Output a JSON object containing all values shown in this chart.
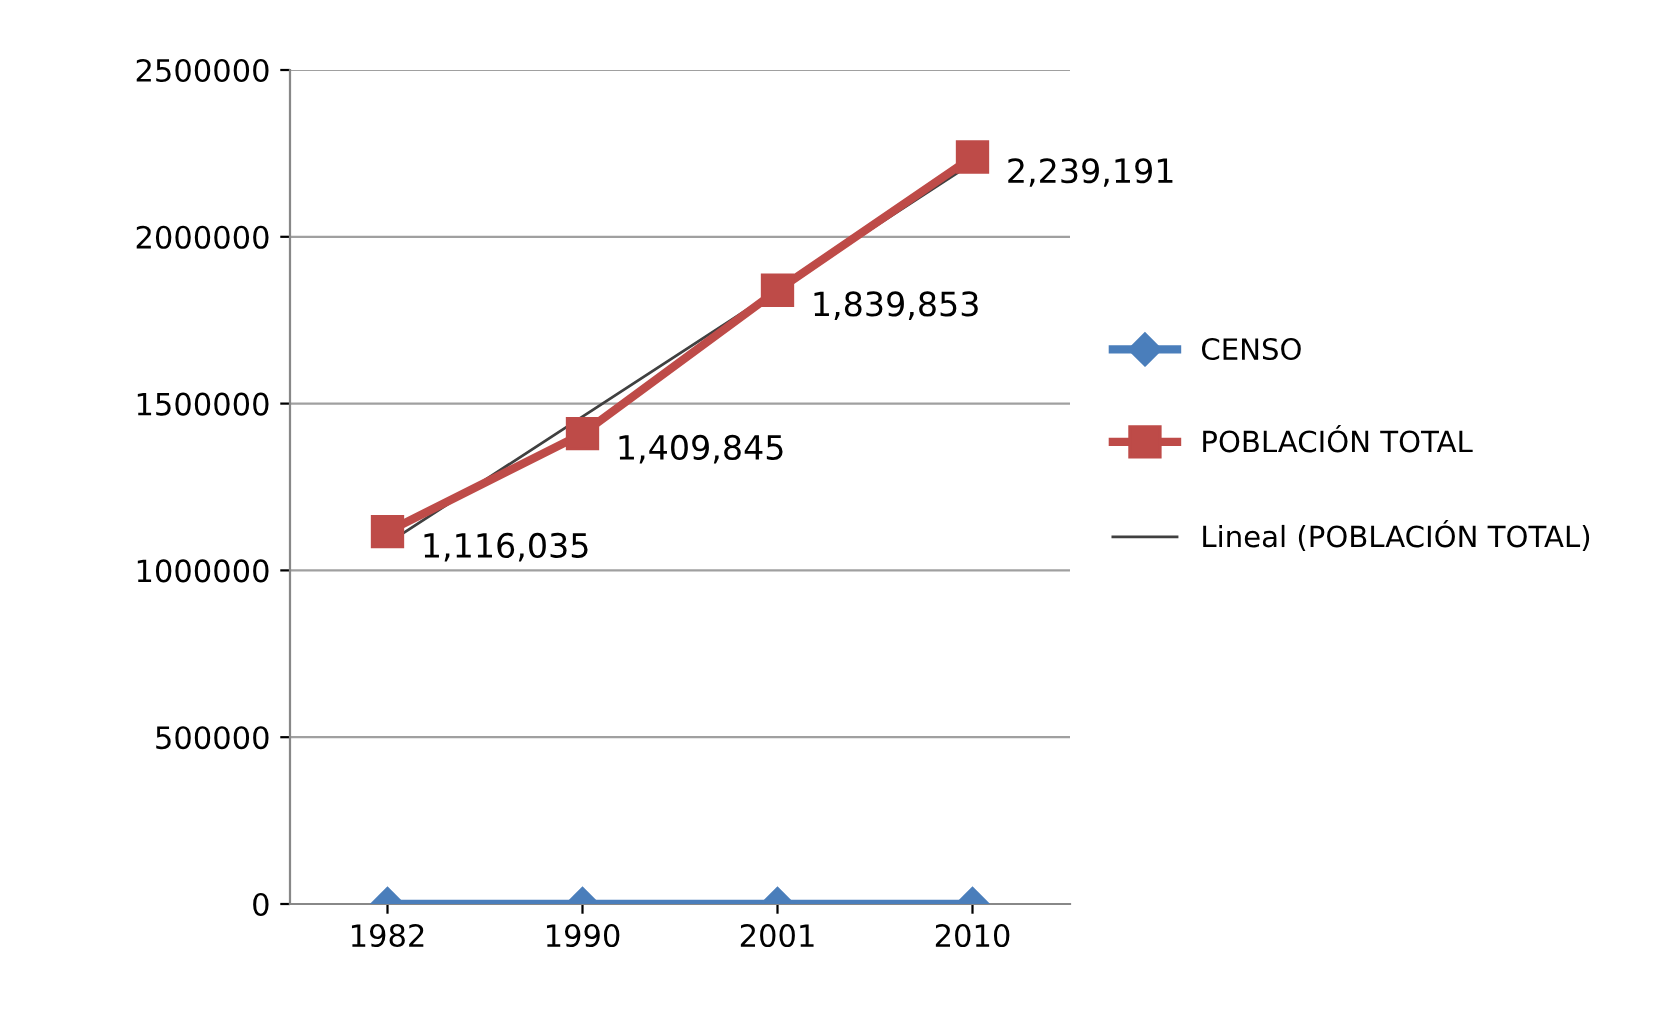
{
  "chart_data": {
    "type": "line",
    "categories": [
      "1982",
      "1990",
      "2001",
      "2010"
    ],
    "series": [
      {
        "name": "CENSO",
        "color": "#4a7ebb",
        "marker": "diamond",
        "values": [
          0,
          0,
          0,
          0
        ]
      },
      {
        "name": "POBLACIÓN TOTAL",
        "color": "#be4b48",
        "marker": "square",
        "values": [
          1116035,
          1409845,
          1839853,
          2239191
        ],
        "value_labels": [
          "1,116,035",
          "1,409,845",
          "1,839,853",
          "2,239,191"
        ]
      },
      {
        "name": "Lineal (POBLACIÓN TOTAL)",
        "color": "#404040",
        "marker": "none",
        "values": [
          1081000,
          1461000,
          1841000,
          2221000
        ]
      }
    ],
    "ylim": [
      0,
      2500000
    ],
    "yticks": [
      0,
      500000,
      1000000,
      1500000,
      2000000,
      2500000
    ],
    "grid": "y",
    "legend": "right"
  }
}
